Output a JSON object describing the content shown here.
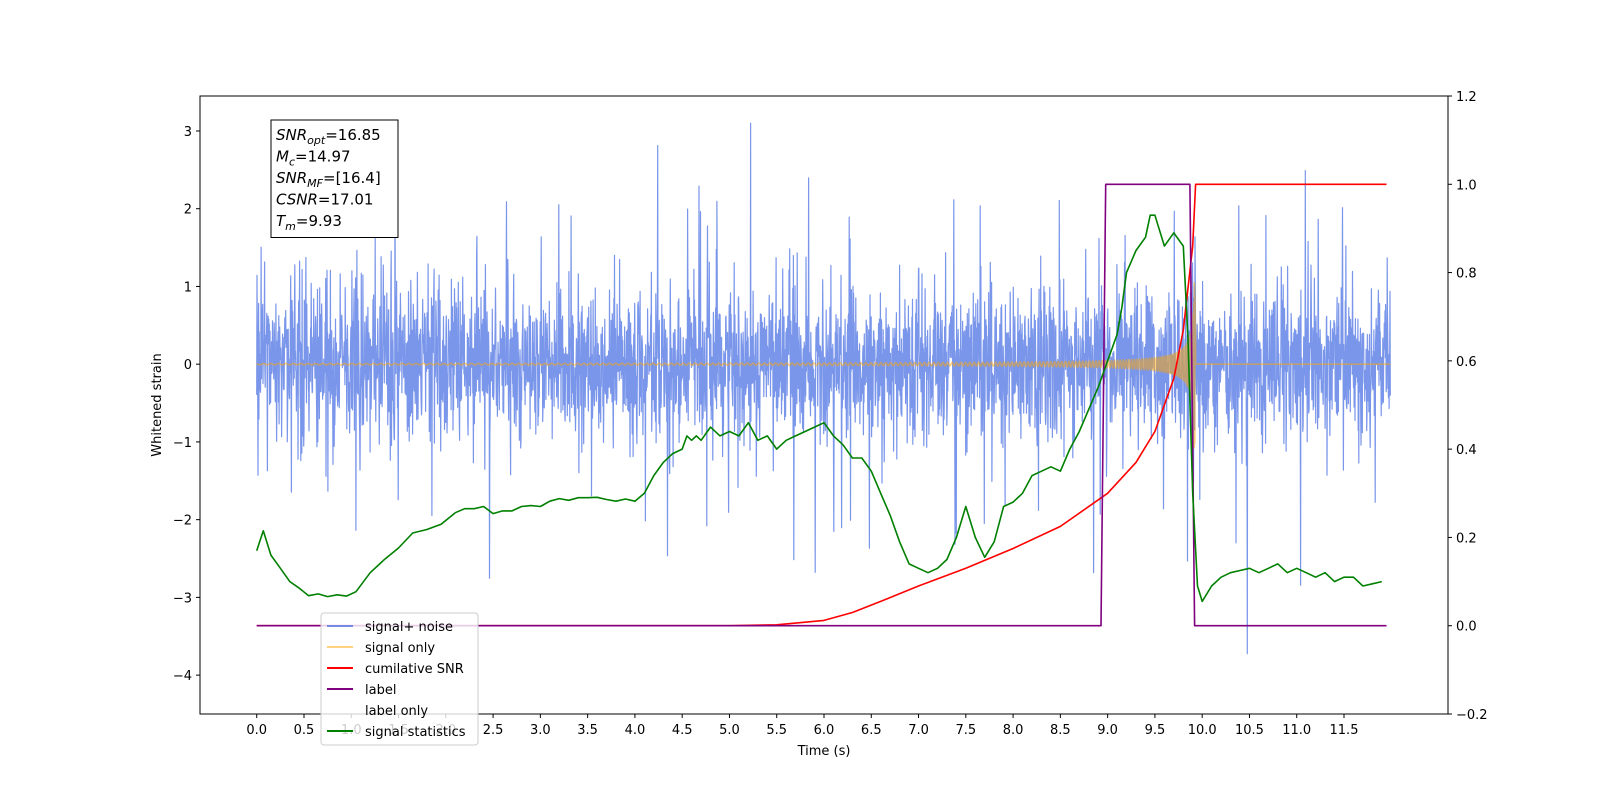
{
  "chart_data": {
    "type": "line",
    "title": "",
    "xlabel": "Time (s)",
    "ylabel": "Whitened strain",
    "ylabel_right": "",
    "xlim": [
      -0.6,
      12.6
    ],
    "ylim": [
      -4.5,
      3.45
    ],
    "ylim_right": [
      -0.2,
      1.2
    ],
    "x_ticks": [
      0.0,
      0.5,
      1.0,
      1.5,
      2.0,
      2.5,
      3.0,
      3.5,
      4.0,
      4.5,
      5.0,
      5.5,
      6.0,
      6.5,
      7.0,
      7.5,
      8.0,
      8.5,
      9.0,
      9.5,
      10.0,
      10.5,
      11.0,
      11.5
    ],
    "x_tick_labels": [
      "0.0",
      "0.5",
      "1.0",
      "1.5",
      "2.0",
      "2.5",
      "3.0",
      "3.5",
      "4.0",
      "4.5",
      "5.0",
      "5.5",
      "6.0",
      "6.5",
      "7.0",
      "7.5",
      "8.0",
      "8.5",
      "9.0",
      "9.5",
      "10.0",
      "10.5",
      "11.0",
      "11.5"
    ],
    "y_ticks": [
      -4,
      -3,
      -2,
      -1,
      0,
      1,
      2,
      3
    ],
    "y_tick_labels": [
      "−4",
      "−3",
      "−2",
      "−1",
      "0",
      "1",
      "2",
      "3"
    ],
    "y_ticks_right": [
      -0.2,
      0.0,
      0.2,
      0.4,
      0.6,
      0.8,
      1.0,
      1.2
    ],
    "y_tick_labels_right": [
      "−0.2",
      "0.0",
      "0.2",
      "0.4",
      "0.6",
      "0.8",
      "1.0",
      "1.2"
    ],
    "grid": false,
    "legend_position": "lower-left",
    "annotation": {
      "lines": [
        {
          "base": "SNR",
          "sub": "opt",
          "value": "=16.85"
        },
        {
          "base": "M",
          "sub": "c",
          "value": "=14.97"
        },
        {
          "base": "SNR",
          "sub": "MF",
          "value": "=[16.4]"
        },
        {
          "base": "CSNR",
          "sub": "",
          "value": "=17.01"
        },
        {
          "base": "T",
          "sub": "m",
          "value": "=9.93"
        }
      ]
    },
    "series": [
      {
        "name": "signal+ noise",
        "axis": "left",
        "color": "#4169e1",
        "opacity": 0.7,
        "kind": "noise",
        "x_range": [
          0.0,
          11.99
        ],
        "noise_sigma": 0.85,
        "samples": 3600
      },
      {
        "name": "signal only",
        "axis": "left",
        "color": "#ffa500",
        "opacity": 0.5,
        "kind": "chirp",
        "x_range": [
          0.0,
          11.99
        ],
        "merger_time": 9.93,
        "peak_amplitude": 1.3
      },
      {
        "name": "cumilative SNR",
        "axis": "right",
        "color": "#ff0000",
        "x": [
          0.0,
          5.0,
          5.5,
          6.0,
          6.3,
          6.6,
          7.0,
          7.5,
          8.0,
          8.5,
          9.0,
          9.3,
          9.5,
          9.7,
          9.8,
          9.9,
          9.93,
          9.95,
          11.95
        ],
        "values": [
          0.0,
          0.0,
          0.002,
          0.012,
          0.03,
          0.055,
          0.09,
          0.13,
          0.175,
          0.225,
          0.3,
          0.37,
          0.44,
          0.56,
          0.67,
          0.86,
          1.0,
          1.0,
          1.0
        ]
      },
      {
        "name": "label",
        "axis": "right",
        "color": "#800080",
        "x": [
          0.0,
          8.93,
          8.98,
          9.87,
          9.92,
          11.95
        ],
        "values": [
          0.0,
          0.0,
          1.0,
          1.0,
          0.0,
          0.0
        ]
      },
      {
        "name": "label only",
        "axis": "right",
        "color": "#ffffff",
        "opacity": 0.0,
        "x": [],
        "values": []
      },
      {
        "name": "signal statistics",
        "axis": "right",
        "color": "#008000",
        "x": [
          0.0,
          0.07,
          0.15,
          0.25,
          0.35,
          0.45,
          0.55,
          0.65,
          0.75,
          0.85,
          0.95,
          1.05,
          1.2,
          1.35,
          1.5,
          1.65,
          1.8,
          1.95,
          2.1,
          2.2,
          2.3,
          2.4,
          2.5,
          2.6,
          2.7,
          2.8,
          2.9,
          3.0,
          3.1,
          3.2,
          3.3,
          3.4,
          3.5,
          3.6,
          3.7,
          3.8,
          3.9,
          4.0,
          4.1,
          4.2,
          4.3,
          4.4,
          4.5,
          4.55,
          4.6,
          4.65,
          4.7,
          4.8,
          4.9,
          5.0,
          5.1,
          5.2,
          5.3,
          5.4,
          5.5,
          5.6,
          5.7,
          5.8,
          5.9,
          6.0,
          6.1,
          6.2,
          6.3,
          6.4,
          6.5,
          6.6,
          6.7,
          6.8,
          6.9,
          7.0,
          7.1,
          7.2,
          7.3,
          7.4,
          7.5,
          7.6,
          7.7,
          7.8,
          7.9,
          8.0,
          8.1,
          8.2,
          8.3,
          8.4,
          8.5,
          8.6,
          8.7,
          8.8,
          8.9,
          9.0,
          9.1,
          9.15,
          9.2,
          9.3,
          9.4,
          9.45,
          9.5,
          9.6,
          9.7,
          9.8,
          9.85,
          9.9,
          9.95,
          10.0,
          10.1,
          10.2,
          10.3,
          10.4,
          10.5,
          10.6,
          10.7,
          10.8,
          10.9,
          11.0,
          11.1,
          11.2,
          11.3,
          11.4,
          11.5,
          11.6,
          11.7,
          11.8,
          11.9
        ],
        "values": [
          0.17,
          0.215,
          0.16,
          0.13,
          0.1,
          0.085,
          0.068,
          0.072,
          0.066,
          0.07,
          0.067,
          0.077,
          0.12,
          0.15,
          0.176,
          0.21,
          0.218,
          0.23,
          0.256,
          0.265,
          0.265,
          0.27,
          0.254,
          0.26,
          0.26,
          0.27,
          0.272,
          0.27,
          0.282,
          0.288,
          0.284,
          0.29,
          0.29,
          0.291,
          0.286,
          0.282,
          0.287,
          0.282,
          0.3,
          0.34,
          0.37,
          0.39,
          0.4,
          0.43,
          0.42,
          0.43,
          0.42,
          0.45,
          0.43,
          0.44,
          0.43,
          0.46,
          0.42,
          0.43,
          0.4,
          0.42,
          0.43,
          0.44,
          0.45,
          0.46,
          0.43,
          0.41,
          0.38,
          0.38,
          0.35,
          0.3,
          0.25,
          0.19,
          0.14,
          0.13,
          0.12,
          0.13,
          0.15,
          0.2,
          0.27,
          0.2,
          0.155,
          0.19,
          0.27,
          0.28,
          0.3,
          0.34,
          0.35,
          0.36,
          0.35,
          0.4,
          0.44,
          0.49,
          0.54,
          0.6,
          0.66,
          0.72,
          0.8,
          0.85,
          0.88,
          0.93,
          0.93,
          0.86,
          0.89,
          0.86,
          0.65,
          0.3,
          0.09,
          0.055,
          0.09,
          0.11,
          0.12,
          0.125,
          0.13,
          0.12,
          0.13,
          0.14,
          0.12,
          0.13,
          0.12,
          0.11,
          0.12,
          0.1,
          0.11,
          0.11,
          0.09,
          0.095,
          0.1
        ]
      }
    ]
  }
}
